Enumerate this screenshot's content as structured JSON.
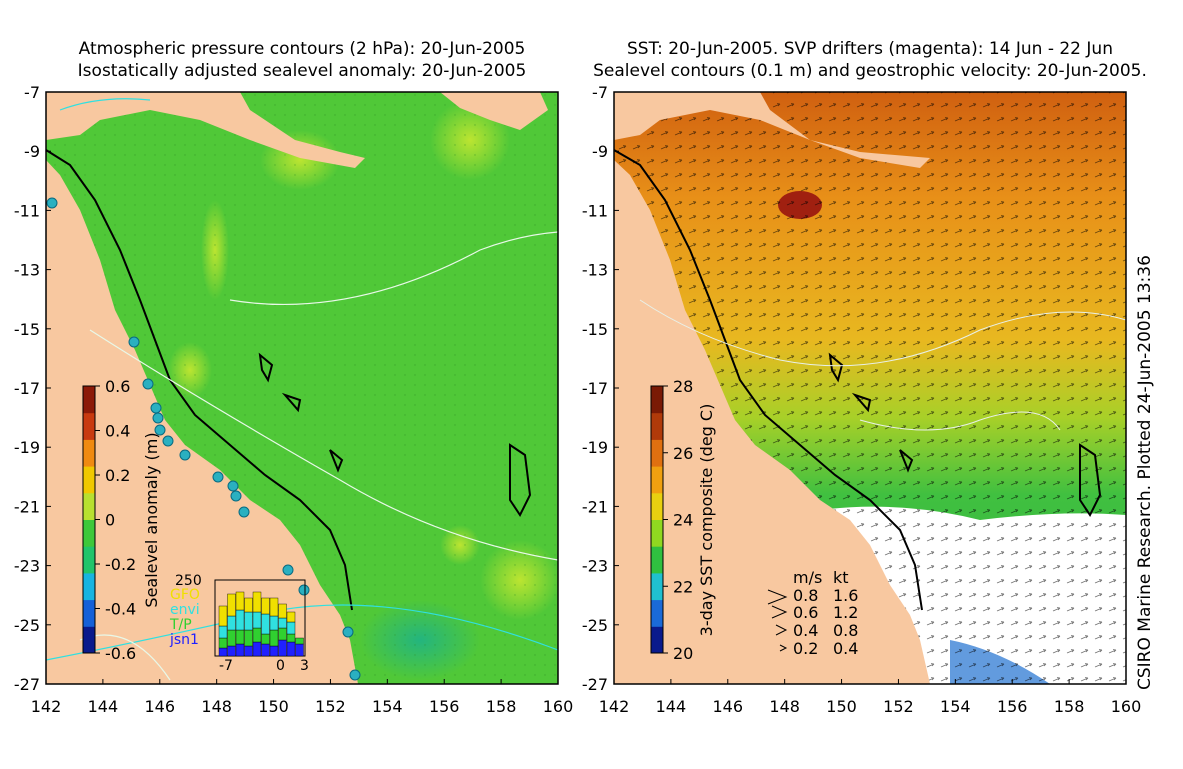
{
  "left_panel": {
    "title_line1": "Atmospheric pressure contours (2 hPa): 20-Jun-2005",
    "title_line2": "Isostatically adjusted sealevel anomaly: 20-Jun-2005",
    "x_ticks": [
      "142",
      "144",
      "146",
      "148",
      "150",
      "152",
      "154",
      "156",
      "158",
      "160"
    ],
    "y_ticks": [
      "-7",
      "-9",
      "-11",
      "-13",
      "-15",
      "-17",
      "-19",
      "-21",
      "-23",
      "-25",
      "-27"
    ],
    "colorbar": {
      "label": "Sealevel anomaly (m)",
      "ticks": [
        "0.6",
        "0.4",
        "0.2",
        "0",
        "-0.2",
        "-0.4",
        "-0.6"
      ],
      "colors": [
        "#0a1a8c",
        "#1560d8",
        "#18b4e0",
        "#22c46a",
        "#3ec83a",
        "#b8e030",
        "#f0c800",
        "#f08a10",
        "#c83a10",
        "#8c1a08"
      ]
    },
    "histogram": {
      "y_max_label": "250",
      "x_ticks": [
        "-7",
        "0",
        "3"
      ],
      "legend": [
        {
          "name": "GFO",
          "color": "#f0e000"
        },
        {
          "name": "envi",
          "color": "#30e0e0"
        },
        {
          "name": "T/P",
          "color": "#30d030"
        },
        {
          "name": "jsn1",
          "color": "#2020ff"
        }
      ]
    }
  },
  "right_panel": {
    "title_line1": "SST: 20-Jun-2005. SVP drifters (magenta): 14 Jun - 22 Jun",
    "title_line2": "Sealevel contours (0.1 m) and geostrophic velocity: 20-Jun-2005.",
    "x_ticks": [
      "142",
      "144",
      "146",
      "148",
      "150",
      "152",
      "154",
      "156",
      "158",
      "160"
    ],
    "y_ticks": [
      "-7",
      "-9",
      "-11",
      "-13",
      "-15",
      "-17",
      "-19",
      "-21",
      "-23",
      "-25",
      "-27"
    ],
    "colorbar": {
      "label": "3-day SST composite (deg C)",
      "ticks": [
        "28",
        "26",
        "24",
        "22",
        "20"
      ],
      "colors": [
        "#0a1a8c",
        "#1a6ad8",
        "#20c0d0",
        "#30c040",
        "#90d820",
        "#e8d010",
        "#f0a010",
        "#e07010",
        "#b03a0a",
        "#7a1a05"
      ]
    },
    "velocity_legend": {
      "header_ms": "m/s",
      "header_kt": "kt",
      "rows": [
        {
          "ms": "0.8",
          "kt": "1.6"
        },
        {
          "ms": "0.6",
          "kt": "1.2"
        },
        {
          "ms": "0.4",
          "kt": "0.8"
        },
        {
          "ms": "0.2",
          "kt": "0.4"
        }
      ]
    }
  },
  "credit": "CSIRO Marine Research. Plotted 24-Jun-2005 13:36",
  "colors": {
    "land": "#f8c8a0",
    "ocean_left": "#50c838",
    "ocean_right_north": "#e8a020",
    "ocean_right_south": "#40c040",
    "cloud": "#ffffff"
  }
}
